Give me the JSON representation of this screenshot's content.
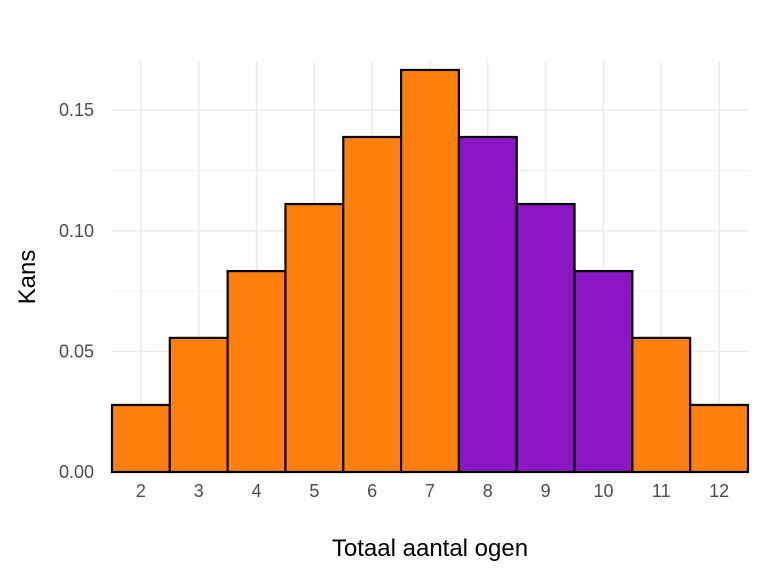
{
  "chart_data": {
    "type": "bar",
    "categories": [
      "2",
      "3",
      "4",
      "5",
      "6",
      "7",
      "8",
      "9",
      "10",
      "11",
      "12"
    ],
    "values": [
      0.0278,
      0.0556,
      0.0833,
      0.1111,
      0.1389,
      0.1667,
      0.1389,
      0.1111,
      0.0833,
      0.0556,
      0.0278
    ],
    "highlighted": [
      false,
      false,
      false,
      false,
      false,
      false,
      true,
      true,
      true,
      false,
      false
    ],
    "xlabel": "Totaal aantal ogen",
    "ylabel": "Kans",
    "ylim": [
      0,
      0.17
    ],
    "yticks": [
      0.0,
      0.05,
      0.1,
      0.15
    ],
    "ytick_labels": [
      "0.00",
      "0.05",
      "0.10",
      "0.15"
    ],
    "grid": true,
    "colors": {
      "default": "#ff7f0e",
      "highlight": "#8a16c4",
      "outline": "#000000"
    }
  }
}
